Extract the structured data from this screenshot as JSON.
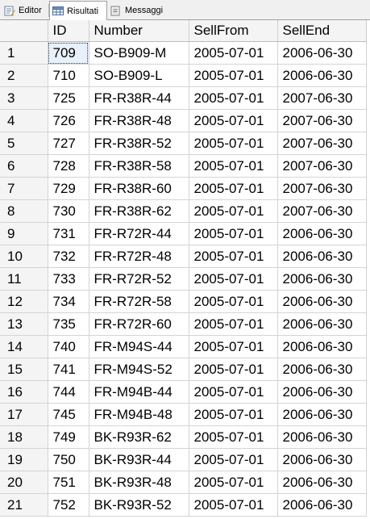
{
  "tabs": [
    {
      "label": "Editor",
      "icon": "editor-icon",
      "active": false
    },
    {
      "label": "Risultati",
      "icon": "grid-results-icon",
      "active": true
    },
    {
      "label": "Messaggi",
      "icon": "messages-icon",
      "active": false
    }
  ],
  "grid": {
    "columns": [
      "",
      "ID",
      "Number",
      "SellFrom",
      "SellEnd"
    ],
    "selected_cell": {
      "row": 0,
      "column": "ID"
    },
    "rows": [
      [
        "1",
        "709",
        "SO-B909-M",
        "2005-07-01",
        "2006-06-30"
      ],
      [
        "2",
        "710",
        "SO-B909-L",
        "2005-07-01",
        "2006-06-30"
      ],
      [
        "3",
        "725",
        "FR-R38R-44",
        "2005-07-01",
        "2007-06-30"
      ],
      [
        "4",
        "726",
        "FR-R38R-48",
        "2005-07-01",
        "2007-06-30"
      ],
      [
        "5",
        "727",
        "FR-R38R-52",
        "2005-07-01",
        "2007-06-30"
      ],
      [
        "6",
        "728",
        "FR-R38R-58",
        "2005-07-01",
        "2007-06-30"
      ],
      [
        "7",
        "729",
        "FR-R38R-60",
        "2005-07-01",
        "2007-06-30"
      ],
      [
        "8",
        "730",
        "FR-R38R-62",
        "2005-07-01",
        "2007-06-30"
      ],
      [
        "9",
        "731",
        "FR-R72R-44",
        "2005-07-01",
        "2006-06-30"
      ],
      [
        "10",
        "732",
        "FR-R72R-48",
        "2005-07-01",
        "2006-06-30"
      ],
      [
        "11",
        "733",
        "FR-R72R-52",
        "2005-07-01",
        "2006-06-30"
      ],
      [
        "12",
        "734",
        "FR-R72R-58",
        "2005-07-01",
        "2006-06-30"
      ],
      [
        "13",
        "735",
        "FR-R72R-60",
        "2005-07-01",
        "2006-06-30"
      ],
      [
        "14",
        "740",
        "FR-M94S-44",
        "2005-07-01",
        "2006-06-30"
      ],
      [
        "15",
        "741",
        "FR-M94S-52",
        "2005-07-01",
        "2006-06-30"
      ],
      [
        "16",
        "744",
        "FR-M94B-44",
        "2005-07-01",
        "2006-06-30"
      ],
      [
        "17",
        "745",
        "FR-M94B-48",
        "2005-07-01",
        "2006-06-30"
      ],
      [
        "18",
        "749",
        "BK-R93R-62",
        "2005-07-01",
        "2006-06-30"
      ],
      [
        "19",
        "750",
        "BK-R93R-44",
        "2005-07-01",
        "2006-06-30"
      ],
      [
        "20",
        "751",
        "BK-R93R-48",
        "2005-07-01",
        "2006-06-30"
      ],
      [
        "21",
        "752",
        "BK-R93R-52",
        "2005-07-01",
        "2006-06-30"
      ]
    ]
  }
}
